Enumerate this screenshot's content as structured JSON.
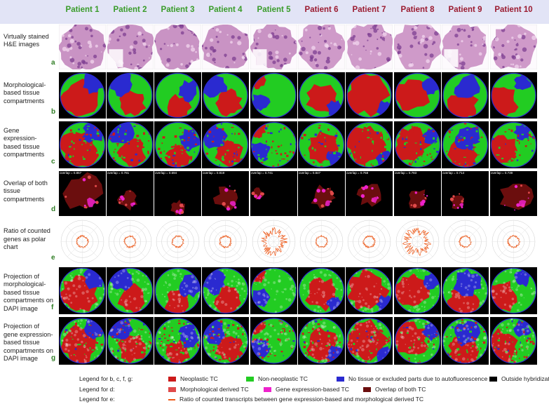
{
  "colors": {
    "header_bg": "#e2e4f6",
    "letter": "#2f7d24",
    "nonneoplastic_patient": "#3a9c2a",
    "neoplastic_patient": "#9b1b30",
    "neoplastic_tc": "#cc1a1a",
    "nonneoplastic_tc": "#22cc22",
    "excluded": "#2a2ad0",
    "outside": "#000000",
    "morph_derived": "#e04a4a",
    "gene_derived": "#ee22cc",
    "overlap_both": "#6b0e0e",
    "ratio_line": "#ee5a1a",
    "he_pink": "#c993c4",
    "dapi_pink": "#e8a2b4"
  },
  "patients": [
    {
      "label": "Patient 1",
      "group": "non-neoplastic",
      "overlap": "overlap = 0.857"
    },
    {
      "label": "Patient 2",
      "group": "non-neoplastic",
      "overlap": "overlap = 0.781"
    },
    {
      "label": "Patient 3",
      "group": "non-neoplastic",
      "overlap": "overlap = 0.694"
    },
    {
      "label": "Patient 4",
      "group": "non-neoplastic",
      "overlap": "overlap = 0.819"
    },
    {
      "label": "Patient 5",
      "group": "non-neoplastic",
      "overlap": "overlap = 0.741"
    },
    {
      "label": "Patient 6",
      "group": "neoplastic",
      "overlap": "overlap = 0.847"
    },
    {
      "label": "Patient 7",
      "group": "neoplastic",
      "overlap": "overlap = 0.768"
    },
    {
      "label": "Patient 8",
      "group": "neoplastic",
      "overlap": "overlap = 0.783"
    },
    {
      "label": "Patient 9",
      "group": "neoplastic",
      "overlap": "overlap = 0.714"
    },
    {
      "label": "Patient 10",
      "group": "neoplastic",
      "overlap": "overlap = 0.739"
    }
  ],
  "rows": [
    {
      "letter": "a",
      "type": "he",
      "label": "Virtually stained H&E images"
    },
    {
      "letter": "b",
      "type": "morph",
      "label": "Morphological-based tissue compartments"
    },
    {
      "letter": "c",
      "type": "gene",
      "label": "Gene expression-based tissue compartments"
    },
    {
      "letter": "d",
      "type": "overlap",
      "label": "Overlap of both tissue compartments"
    },
    {
      "letter": "e",
      "type": "polar",
      "label": "Ratio of counted genes as polar chart"
    },
    {
      "letter": "f",
      "type": "proj_morph",
      "label": "Projection of morphological-based tissue compartments on DAPI image"
    },
    {
      "letter": "g",
      "type": "proj_gene",
      "label": "Projection of gene expression-based tissue compartments on DAPI image"
    }
  ],
  "legend": {
    "bcfg": {
      "title": "Legend for b, c, f, g:",
      "items": [
        {
          "text": "Neoplastic TC",
          "color": "#cc1a1a"
        },
        {
          "text": "Non-neoplastic TC",
          "color": "#22cc22"
        },
        {
          "text": "No tissue or excluded parts due to autofluorescence",
          "color": "#2a2ad0"
        },
        {
          "text": "Outside hybridization area",
          "color": "#000000"
        }
      ]
    },
    "d": {
      "title": "Legend for d:",
      "items": [
        {
          "text": "Morphological derived TC",
          "color": "#e04a4a"
        },
        {
          "text": "Gene expression-based TC",
          "color": "#ee22cc"
        },
        {
          "text": "Overlap of both TC",
          "color": "#6b0e0e"
        }
      ]
    },
    "e": {
      "title": "Legend for e:",
      "items": [
        {
          "text": "Ratio of counted transcripts between gene expression-based and morphological derived TC",
          "color": "#ee5a1a"
        }
      ]
    }
  }
}
